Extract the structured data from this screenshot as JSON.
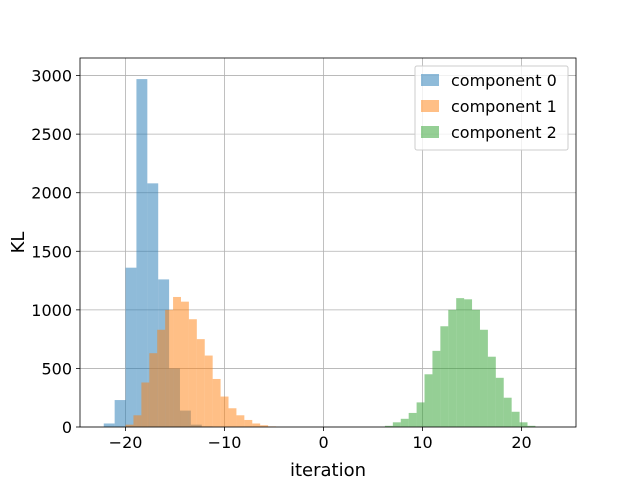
{
  "chart_data": {
    "type": "histogram",
    "xlabel": "iteration",
    "ylabel": "KL",
    "xlim": [
      -24.6,
      25.5
    ],
    "ylim": [
      0,
      3150
    ],
    "x_ticks": [
      -20,
      -10,
      0,
      10,
      20
    ],
    "x_tick_labels": [
      "−20",
      "−10",
      "0",
      "10",
      "20"
    ],
    "y_ticks": [
      0,
      500,
      1000,
      1500,
      2000,
      2500,
      3000
    ],
    "y_tick_labels": [
      "0",
      "500",
      "1000",
      "1500",
      "2000",
      "2500",
      "3000"
    ],
    "grid": true,
    "legend_position": "upper right",
    "series": [
      {
        "name": "component 0",
        "color": "#1f77b4",
        "alpha": 0.5,
        "bin_edges": [
          -22.2,
          -21.1,
          -20.0,
          -18.9,
          -17.8,
          -16.7,
          -15.6,
          -14.5,
          -13.4,
          -12.3,
          -11.2
        ],
        "counts": [
          30,
          230,
          1360,
          2970,
          2080,
          1260,
          500,
          140,
          20,
          5
        ]
      },
      {
        "name": "component 1",
        "color": "#ff7f0e",
        "alpha": 0.5,
        "bin_edges": [
          -20.0,
          -19.2,
          -18.4,
          -17.6,
          -16.8,
          -16.0,
          -15.2,
          -14.4,
          -13.6,
          -12.8,
          -12.0,
          -11.2,
          -10.4,
          -9.6,
          -8.8,
          -8.0,
          -7.2,
          -6.4,
          -5.6,
          -4.8
        ],
        "counts": [
          20,
          100,
          380,
          630,
          830,
          1000,
          1110,
          1070,
          920,
          750,
          610,
          410,
          260,
          160,
          100,
          60,
          30,
          15,
          5
        ]
      },
      {
        "name": "component 2",
        "color": "#2ca02c",
        "alpha": 0.5,
        "bin_edges": [
          6.2,
          7.0,
          7.8,
          8.6,
          9.4,
          10.2,
          11.0,
          11.8,
          12.6,
          13.4,
          14.2,
          15.0,
          15.8,
          16.6,
          17.4,
          18.2,
          19.0,
          19.8,
          20.6,
          21.4
        ],
        "counts": [
          10,
          40,
          70,
          120,
          210,
          450,
          650,
          860,
          1000,
          1100,
          1090,
          1000,
          830,
          600,
          420,
          250,
          130,
          40,
          10
        ]
      }
    ]
  }
}
